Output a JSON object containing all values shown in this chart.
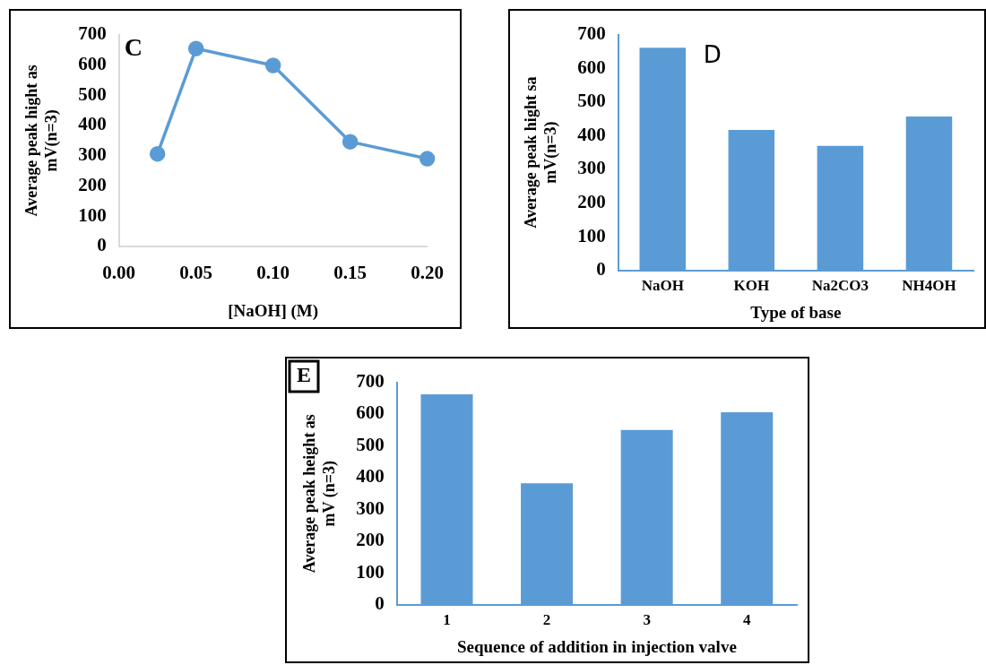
{
  "chart_data": [
    {
      "type": "line",
      "annotations": [
        "C"
      ],
      "xlabel": "[NaOH] (M)",
      "ylabel": "Average peak hight as mV(n=3)",
      "x": [
        0.025,
        0.05,
        0.1,
        0.15,
        0.2
      ],
      "marker": "circle",
      "legend": false,
      "series": [
        {
          "color": "#5b9bd5",
          "values": [
            306,
            654,
            598,
            346,
            290
          ]
        }
      ],
      "xlim": [
        0,
        0.2
      ],
      "xticks": [
        {
          "value": 0,
          "label": "0.00"
        },
        {
          "value": 0.05,
          "label": "0.05"
        },
        {
          "value": 0.1,
          "label": "0.10"
        },
        {
          "value": 0.15,
          "label": "0.15"
        },
        {
          "value": 0.2,
          "label": "0.20"
        }
      ],
      "ylim": [
        0,
        700
      ],
      "yticks": [
        0,
        100,
        200,
        300,
        400,
        500,
        600,
        700
      ]
    },
    {
      "type": "bar",
      "annotations": [
        "D"
      ],
      "xlabel": "Type of base",
      "ylabel": "Average peak hight sa mV(n=3)",
      "categories": [
        "NaOH",
        "KOH",
        "Na2CO3",
        "NH4OH"
      ],
      "legend": false,
      "series": [
        {
          "color": "#5b9bd5",
          "values": [
            661,
            417,
            370,
            457
          ]
        }
      ],
      "ylim": [
        0,
        700
      ],
      "yticks": [
        0,
        100,
        200,
        300,
        400,
        500,
        600,
        700
      ]
    },
    {
      "type": "bar",
      "annotations": [
        "E"
      ],
      "xlabel": "Sequence of addition in injection valve",
      "ylabel": "Average peak height as mV (n=3)",
      "categories": [
        "1",
        "2",
        "3",
        "4"
      ],
      "legend": false,
      "series": [
        {
          "color": "#5b9bd5",
          "values": [
            662,
            382,
            550,
            606
          ]
        }
      ],
      "ylim": [
        0,
        700
      ],
      "yticks": [
        0,
        100,
        200,
        300,
        400,
        500,
        600,
        700
      ]
    }
  ]
}
